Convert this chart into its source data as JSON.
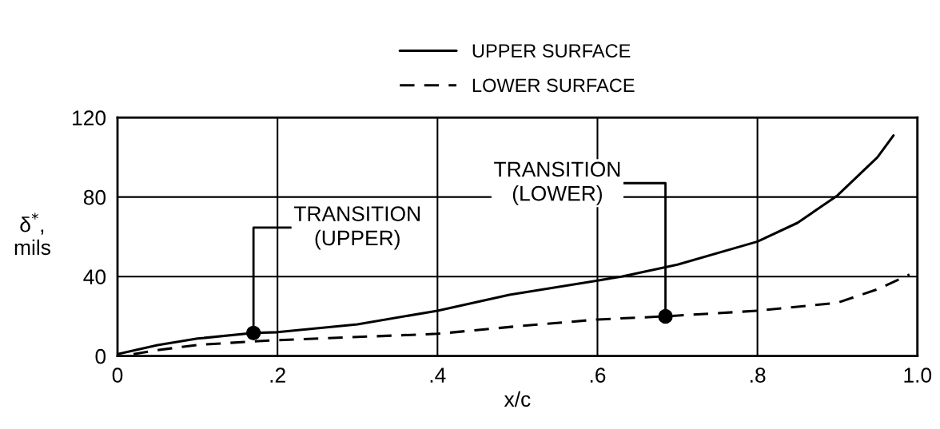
{
  "chart_data": {
    "type": "line",
    "xlabel": "x/c",
    "ylabel": "δ$^{*}$,\nmils",
    "xlim": [
      0,
      1.0
    ],
    "ylim": [
      0,
      120
    ],
    "xticks": [
      0,
      {
        "value": 0.2,
        "label": ".2"
      },
      {
        "value": 0.4,
        "label": ".4"
      },
      {
        "value": 0.6,
        "label": ".6"
      },
      {
        "value": 0.8,
        "label": ".8"
      },
      {
        "value": 1.0,
        "label": "1.0"
      }
    ],
    "yticks": [
      0,
      40,
      80,
      120
    ],
    "grid": true,
    "legend": "top",
    "marker": "none",
    "series": [
      {
        "name": "UPPER SURFACE",
        "color": "#000000",
        "line_style": "solid",
        "x": [
          0,
          0.05,
          0.1,
          0.17,
          0.2,
          0.3,
          0.4,
          0.49,
          0.6,
          0.63,
          0.7,
          0.8,
          0.85,
          0.9,
          0.95,
          0.97
        ],
        "values": [
          1,
          5.5,
          8.8,
          11.6,
          12,
          16,
          22.8,
          30.8,
          38,
          40,
          46,
          57.6,
          67,
          80.8,
          100,
          111
        ]
      },
      {
        "name": "LOWER SURFACE",
        "color": "#000000",
        "line_style": "dashed",
        "x": [
          0.02,
          0.05,
          0.1,
          0.17,
          0.2,
          0.3,
          0.4,
          0.5,
          0.6,
          0.685,
          0.8,
          0.9,
          0.95,
          0.99
        ],
        "values": [
          1,
          3,
          5.6,
          7.4,
          8,
          9.6,
          11.2,
          15,
          18.4,
          20,
          22.8,
          26.8,
          33.6,
          41
        ]
      },
      {
        "type": "scatter",
        "color": "#000000",
        "marker": "circle",
        "x": [
          0.17,
          0.685
        ],
        "values": [
          11.6,
          20
        ]
      }
    ],
    "annotations": [
      {
        "text": "TRANSITION\n(UPPER)",
        "x": 0.17,
        "y": 11.6
      },
      {
        "text": "TRANSITION\n(LOWER)",
        "x": 0.685,
        "y": 20
      }
    ]
  }
}
